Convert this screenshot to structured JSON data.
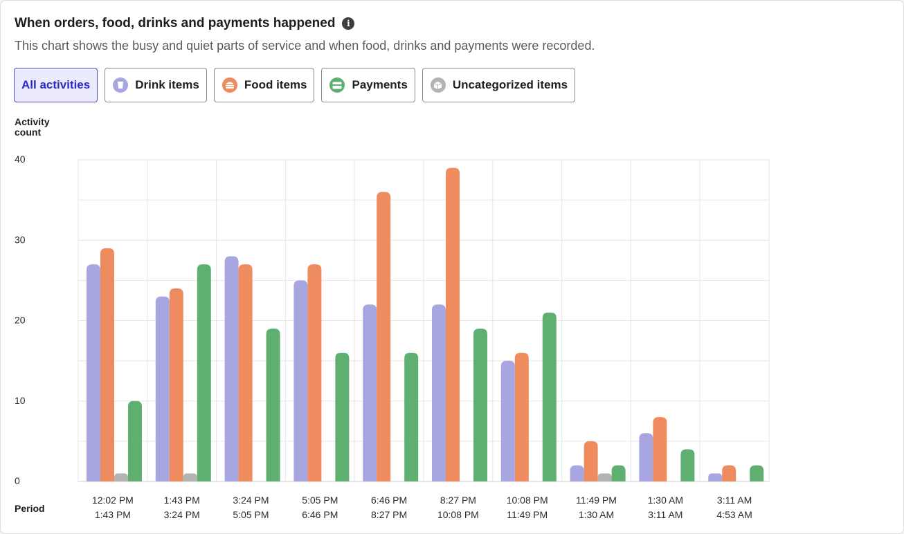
{
  "header": {
    "title": "When orders, food, drinks and payments happened",
    "subtitle": "This chart shows the busy and quiet parts of service and when food, drinks and payments were recorded.",
    "info_icon": "info-icon"
  },
  "filters": [
    {
      "label": "All activities",
      "active": true,
      "icon": null
    },
    {
      "label": "Drink items",
      "active": false,
      "icon": "cup-icon",
      "color": "#a7a6e0"
    },
    {
      "label": "Food items",
      "active": false,
      "icon": "burger-icon",
      "color": "#ee8c60"
    },
    {
      "label": "Payments",
      "active": false,
      "icon": "card-icon",
      "color": "#5faf70"
    },
    {
      "label": "Uncategorized items",
      "active": false,
      "icon": "box-icon",
      "color": "#b3b3b3"
    }
  ],
  "chart_data": {
    "type": "bar",
    "ylabel": "Activity\ncount",
    "xlabel": "Period",
    "ylim": [
      0,
      40
    ],
    "yticks": [
      0,
      10,
      20,
      30,
      40
    ],
    "grid": true,
    "categories": [
      [
        "12:02 PM",
        "1:43 PM"
      ],
      [
        "1:43 PM",
        "3:24 PM"
      ],
      [
        "3:24 PM",
        "5:05 PM"
      ],
      [
        "5:05 PM",
        "6:46 PM"
      ],
      [
        "6:46 PM",
        "8:27 PM"
      ],
      [
        "8:27 PM",
        "10:08 PM"
      ],
      [
        "10:08 PM",
        "11:49 PM"
      ],
      [
        "11:49 PM",
        "1:30 AM"
      ],
      [
        "1:30 AM",
        "3:11 AM"
      ],
      [
        "3:11 AM",
        "4:53 AM"
      ]
    ],
    "series": [
      {
        "name": "Drink items",
        "color": "#a7a6e0",
        "values": [
          27,
          23,
          28,
          25,
          22,
          22,
          15,
          2,
          6,
          1
        ]
      },
      {
        "name": "Food items",
        "color": "#ee8c60",
        "values": [
          29,
          24,
          27,
          27,
          36,
          39,
          16,
          5,
          8,
          2
        ]
      },
      {
        "name": "Uncategorized items",
        "color": "#b3b3b3",
        "values": [
          1,
          1,
          0,
          0,
          0,
          0,
          0,
          1,
          0,
          0
        ]
      },
      {
        "name": "Payments",
        "color": "#5faf70",
        "values": [
          10,
          27,
          19,
          16,
          16,
          19,
          21,
          2,
          4,
          2
        ]
      }
    ]
  }
}
